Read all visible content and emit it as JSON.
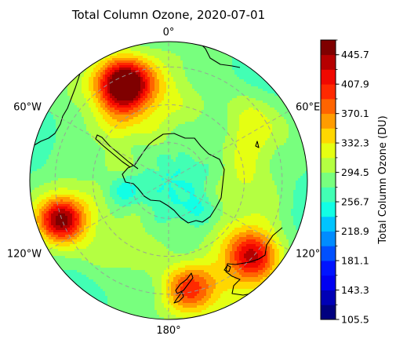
{
  "chart_data": {
    "type": "heatmap",
    "projection": "south-polar-stereographic",
    "title": "Total Column Ozone, 2020-07-01",
    "longitude_labels": [
      {
        "lon": 0,
        "text": "0°"
      },
      {
        "lon": -60,
        "text": "60°W"
      },
      {
        "lon": 60,
        "text": "60°E"
      },
      {
        "lon": -120,
        "text": "120°W"
      },
      {
        "lon": 120,
        "text": "120°"
      },
      {
        "lon": 180,
        "text": "180°"
      }
    ],
    "colorbar": {
      "label": "Total Column Ozone (DU)",
      "range": [
        105.5,
        464.6
      ],
      "levels": 19,
      "tick_values": [
        105.5,
        143.3,
        181.1,
        218.9,
        256.7,
        294.5,
        332.3,
        370.1,
        407.9,
        445.7
      ],
      "tick_labels": [
        "105.5",
        "143.3",
        "181.1",
        "218.9",
        "256.7",
        "294.5",
        "332.3",
        "370.1",
        "407.9",
        "445.7"
      ],
      "colormap": "jet",
      "colors": [
        "#00007f",
        "#0000b6",
        "#0000f1",
        "#0014ff",
        "#0050ff",
        "#008cff",
        "#00c4ff",
        "#12ffe5",
        "#42ffb4",
        "#78ff7e",
        "#b4ff42",
        "#e5ff12",
        "#ffd700",
        "#ff9c00",
        "#ff6400",
        "#ff2900",
        "#f10800",
        "#b60000",
        "#7f0000"
      ]
    },
    "field": {
      "background_value": 270,
      "features": [
        {
          "lon": -25,
          "colat": 42,
          "sigma": 7,
          "amp": 165
        },
        {
          "lon": -30,
          "colat": 38,
          "sigma": 13,
          "amp": 60
        },
        {
          "lon": -110,
          "colat": 45,
          "sigma": 6,
          "amp": 150
        },
        {
          "lon": -110,
          "colat": 44,
          "sigma": 12,
          "amp": 45
        },
        {
          "lon": 132,
          "colat": 44,
          "sigma": 6.5,
          "amp": 120
        },
        {
          "lon": 132,
          "colat": 45,
          "sigma": 12,
          "amp": 40
        },
        {
          "lon": 170,
          "colat": 44,
          "sigma": 7,
          "amp": 90
        },
        {
          "lon": 160,
          "colat": 48,
          "sigma": 14,
          "amp": 40
        },
        {
          "lon": 60,
          "colat": 40,
          "sigma": 9,
          "amp": 55
        },
        {
          "lon": 95,
          "colat": 30,
          "sigma": 10,
          "amp": 40
        },
        {
          "lon": -150,
          "colat": 30,
          "sigma": 10,
          "amp": 35
        },
        {
          "lon": 0,
          "colat": 35,
          "sigma": 14,
          "amp": 30
        },
        {
          "lon": -80,
          "colat": 20,
          "sigma": 8,
          "amp": 25
        },
        {
          "lon": -100,
          "colat": 18,
          "sigma": 5,
          "amp": -40
        },
        {
          "lon": 130,
          "colat": 15,
          "sigma": 6,
          "amp": -20
        },
        {
          "lon": 0,
          "colat": 0,
          "sigma": 8,
          "amp": -15
        }
      ]
    },
    "gridlines": {
      "meridian_step_deg": 60,
      "parallel_colatitudes_deg": [
        15,
        30,
        45
      ]
    },
    "map_extent_colatitude_deg": 55,
    "coastlines": true
  }
}
